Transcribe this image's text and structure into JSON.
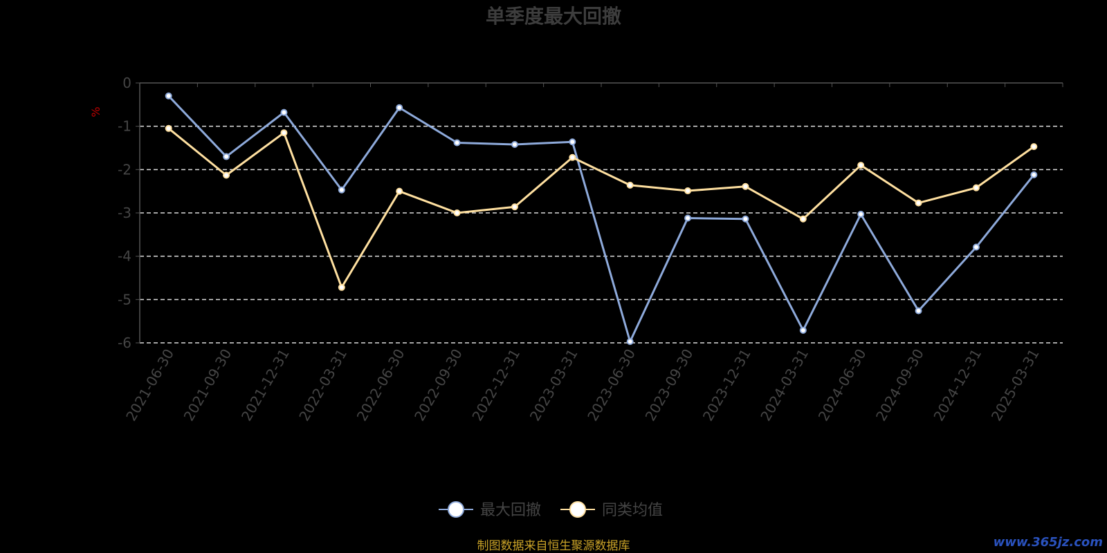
{
  "chart_data": {
    "type": "line",
    "title": "单季度最大回撤",
    "ylabel": "%",
    "xlabel": "",
    "ylim": [
      -6,
      0
    ],
    "yticks": [
      0,
      -1,
      -2,
      -3,
      -4,
      -5,
      -6
    ],
    "grid": true,
    "legend_position": "bottom-center",
    "categories": [
      "2021-06-30",
      "2021-09-30",
      "2021-12-31",
      "2022-03-31",
      "2022-06-30",
      "2022-09-30",
      "2022-12-31",
      "2023-03-31",
      "2023-06-30",
      "2023-09-30",
      "2023-12-31",
      "2024-03-31",
      "2024-06-30",
      "2024-09-30",
      "2024-12-31",
      "2025-03-31"
    ],
    "series": [
      {
        "name": "最大回撤",
        "color": "#8eaadb",
        "values": [
          -0.3,
          -1.7,
          -0.68,
          -2.47,
          -0.57,
          -1.38,
          -1.42,
          -1.36,
          -5.97,
          -3.12,
          -3.14,
          -5.71,
          -3.03,
          -5.26,
          -3.79,
          -2.12
        ]
      },
      {
        "name": "同类均值",
        "color": "#ffe0a0",
        "values": [
          -1.05,
          -2.13,
          -1.15,
          -4.72,
          -2.5,
          -3.0,
          -2.86,
          -1.72,
          -2.36,
          -2.49,
          -2.39,
          -3.14,
          -1.9,
          -2.77,
          -2.42,
          -1.47
        ]
      }
    ]
  },
  "source_note": "制图数据来自恒生聚源数据库",
  "watermark": "www.365jz.com",
  "colors": {
    "background": "#000000",
    "axis": "#555555",
    "grid": "#dddddd"
  }
}
